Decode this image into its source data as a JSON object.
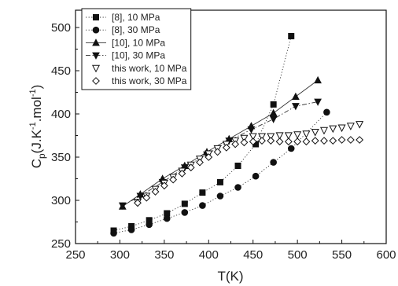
{
  "chart_data": {
    "type": "scatter",
    "xlabel": "T(K)",
    "ylabel": {
      "base": "C",
      "sub": "p",
      "unit_open": "(J.K",
      "sup1": "-1",
      "mid": ".mol",
      "sup2": "-1",
      "unit_close": ")"
    },
    "xlim": [
      250,
      600
    ],
    "ylim": [
      250,
      520
    ],
    "xticks": [
      250,
      300,
      350,
      400,
      450,
      500,
      550,
      600
    ],
    "yticks": [
      250,
      300,
      350,
      400,
      450,
      500
    ],
    "grid": false,
    "legend_position": "top-left",
    "series": [
      {
        "name": "[8], 10 MPa",
        "marker": "square-filled",
        "line": "dotted",
        "x": [
          293,
          313,
          333,
          353,
          373,
          393,
          413,
          433,
          453,
          473,
          493
        ],
        "y": [
          265,
          270,
          277,
          285,
          296,
          309,
          321,
          340,
          365,
          411,
          490
        ]
      },
      {
        "name": "[8], 30 MPa",
        "marker": "circle-filled",
        "line": "dotted",
        "x": [
          293,
          313,
          333,
          353,
          373,
          393,
          413,
          433,
          453,
          473,
          493,
          533
        ],
        "y": [
          262,
          266,
          272,
          279,
          286,
          294,
          305,
          315,
          328,
          344,
          360,
          402
        ]
      },
      {
        "name": "[10], 10 MPa",
        "marker": "triangle-up-filled",
        "line": "solid",
        "x": [
          303,
          323,
          348,
          373,
          398,
          423,
          448,
          473,
          498,
          523
        ],
        "y": [
          293,
          307,
          325,
          340,
          356,
          371,
          386,
          401,
          420,
          439
        ]
      },
      {
        "name": "[10], 30 MPa",
        "marker": "triangle-down-filled",
        "line": "dashdot",
        "x": [
          303,
          323,
          348,
          373,
          398,
          423,
          448,
          473,
          498,
          523
        ],
        "y": [
          294,
          305,
          321,
          338,
          353,
          369,
          382,
          394,
          409,
          414
        ]
      },
      {
        "name": "this work, 10 MPa",
        "marker": "triangle-down-open",
        "line": "none",
        "x": [
          320,
          330,
          340,
          350,
          360,
          370,
          380,
          390,
          400,
          410,
          420,
          430,
          440,
          450,
          460,
          470,
          480,
          490,
          500,
          510,
          520,
          530,
          540,
          550,
          560,
          570
        ],
        "y": [
          298,
          305,
          313,
          320,
          327,
          334,
          341,
          348,
          354,
          360,
          365,
          369,
          372,
          374,
          374,
          374,
          375,
          375,
          376,
          377,
          379,
          381,
          383,
          384,
          386,
          388
        ]
      },
      {
        "name": "this work, 30 MPa",
        "marker": "diamond-open",
        "line": "none",
        "x": [
          320,
          330,
          340,
          350,
          360,
          370,
          380,
          390,
          400,
          410,
          420,
          430,
          440,
          450,
          460,
          470,
          480,
          490,
          500,
          510,
          520,
          530,
          540,
          550,
          560,
          570
        ],
        "y": [
          297,
          303,
          310,
          317,
          324,
          331,
          338,
          344,
          350,
          356,
          361,
          365,
          367,
          368,
          369,
          369,
          368,
          368,
          368,
          368,
          369,
          369,
          369,
          370,
          370,
          370
        ]
      }
    ]
  }
}
